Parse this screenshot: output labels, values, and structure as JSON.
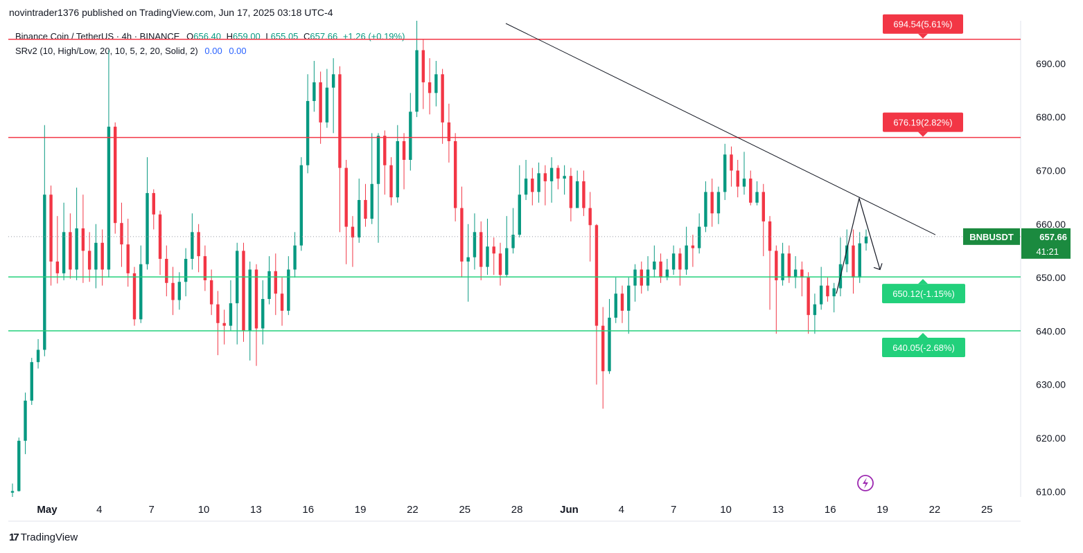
{
  "header": {
    "published": "novintrader1376 published on TradingView.com, Jun 17, 2025 03:18 UTC-4"
  },
  "legend": {
    "symbol": "Binance Coin / TetherUS · 4h · BINANCE",
    "open_label": "O",
    "open": "656.40",
    "high_label": "H",
    "high": "659.00",
    "low_label": "L",
    "low": "655.05",
    "close_label": "C",
    "close": "657.66",
    "change": "+1.26 (+0.19%)",
    "indicator": "SRv2 (10, High/Low, 20, 10, 5, 2, 20, Solid, 2)",
    "ind_val1": "0.00",
    "ind_val2": "0.00"
  },
  "footer": {
    "logo": "17",
    "brand": "TradingView"
  },
  "colors": {
    "up": "#089981",
    "down": "#f23645",
    "resistance": "#f23645",
    "support": "#22d07b",
    "accent": "#9c27b0"
  },
  "chart_data": {
    "type": "candlestick",
    "symbol": "BNBUSDT",
    "timeframe": "4h",
    "ylim": [
      609,
      698
    ],
    "yticks": [
      "690.00",
      "680.00",
      "670.00",
      "660.00",
      "650.00",
      "640.00",
      "630.00",
      "620.00",
      "610.00"
    ],
    "ytick_values": [
      690,
      680,
      670,
      660,
      650,
      640,
      630,
      620,
      610
    ],
    "xticks": [
      "May",
      "4",
      "7",
      "10",
      "13",
      "16",
      "19",
      "22",
      "25",
      "28",
      "Jun",
      "4",
      "7",
      "10",
      "13",
      "16",
      "19",
      "22",
      "25"
    ],
    "xtick_bold": [
      "May",
      "Jun"
    ],
    "last_price": {
      "symbol": "BNBUSDT",
      "value": "657.66",
      "countdown": "41:21",
      "price": 657.66
    },
    "levels": [
      {
        "price": 694.54,
        "label": "694.54(5.61%)",
        "kind": "resistance"
      },
      {
        "price": 676.19,
        "label": "676.19(2.82%)",
        "kind": "resistance"
      },
      {
        "price": 650.12,
        "label": "650.12(-1.15%)",
        "kind": "support"
      },
      {
        "price": 640.05,
        "label": "640.05(-2.68%)",
        "kind": "support"
      }
    ],
    "trendline": {
      "from": [
        "May 27",
        697.5
      ],
      "to": [
        "Jun 20",
        658.0
      ]
    },
    "projection": [
      [
        "Jun 15",
        647.0
      ],
      [
        "Jun 16",
        664.8
      ],
      [
        "Jun 17",
        651.5
      ]
    ],
    "candles": [
      [
        609.8,
        610.1,
        611.5,
        608.2
      ],
      [
        610.1,
        619.5,
        620.1,
        610.0
      ],
      [
        619.5,
        627.0,
        628.5,
        617.0
      ],
      [
        627.0,
        634.2,
        635.0,
        626.2
      ],
      [
        634.2,
        636.5,
        638.5,
        633.0
      ],
      [
        636.5,
        665.5,
        678.5,
        635.3
      ],
      [
        665.5,
        653.0,
        667.2,
        648.5
      ],
      [
        653.0,
        650.8,
        661.5,
        648.9
      ],
      [
        650.8,
        658.5,
        664.0,
        649.5
      ],
      [
        658.5,
        651.5,
        662.0,
        649.8
      ],
      [
        651.5,
        659.2,
        666.8,
        649.5
      ],
      [
        659.2,
        655.0,
        665.5,
        649.0
      ],
      [
        655.0,
        651.5,
        658.5,
        649.2
      ],
      [
        651.5,
        656.5,
        660.0,
        648.0
      ],
      [
        656.5,
        651.5,
        659.0,
        648.5
      ],
      [
        651.5,
        678.2,
        692.5,
        650.0
      ],
      [
        678.2,
        660.2,
        679.0,
        658.2
      ],
      [
        660.2,
        656.2,
        664.0,
        652.0
      ],
      [
        656.2,
        650.8,
        661.0,
        648.3
      ],
      [
        650.8,
        642.2,
        652.0,
        641.0
      ],
      [
        642.2,
        652.5,
        656.0,
        641.5
      ],
      [
        652.5,
        665.8,
        672.5,
        651.5
      ],
      [
        665.8,
        661.8,
        666.5,
        659.0
      ],
      [
        661.8,
        653.5,
        662.5,
        650.5
      ],
      [
        653.5,
        649.0,
        656.0,
        646.5
      ],
      [
        649.0,
        645.8,
        652.0,
        643.0
      ],
      [
        645.8,
        649.2,
        651.0,
        644.0
      ],
      [
        649.2,
        653.5,
        655.5,
        646.5
      ],
      [
        653.5,
        658.5,
        662.0,
        651.5
      ],
      [
        658.5,
        654.0,
        660.0,
        651.0
      ],
      [
        654.0,
        649.5,
        656.0,
        647.5
      ],
      [
        649.5,
        645.0,
        651.5,
        643.0
      ],
      [
        645.0,
        641.5,
        647.5,
        635.5
      ],
      [
        641.5,
        641.0,
        644.0,
        637.5
      ],
      [
        641.0,
        645.2,
        649.5,
        640.0
      ],
      [
        645.2,
        655.0,
        656.5,
        637.5
      ],
      [
        655.0,
        640.0,
        656.5,
        638.0
      ],
      [
        640.0,
        651.5,
        653.0,
        634.5
      ],
      [
        651.5,
        640.5,
        652.5,
        633.5
      ],
      [
        640.5,
        646.0,
        649.5,
        637.5
      ],
      [
        646.0,
        651.2,
        654.0,
        645.0
      ],
      [
        651.2,
        647.0,
        654.5,
        643.0
      ],
      [
        647.0,
        643.8,
        650.0,
        641.0
      ],
      [
        643.8,
        651.5,
        654.0,
        643.0
      ],
      [
        651.5,
        656.0,
        658.5,
        650.0
      ],
      [
        656.0,
        671.0,
        672.5,
        655.0
      ],
      [
        671.0,
        683.0,
        688.0,
        669.5
      ],
      [
        683.0,
        686.5,
        690.5,
        681.0
      ],
      [
        686.5,
        679.0,
        688.5,
        675.0
      ],
      [
        679.0,
        685.5,
        689.0,
        678.0
      ],
      [
        685.5,
        688.0,
        691.0,
        677.0
      ],
      [
        688.0,
        670.5,
        689.5,
        658.5
      ],
      [
        670.5,
        659.5,
        672.0,
        652.5
      ],
      [
        659.5,
        657.5,
        661.5,
        652.0
      ],
      [
        657.5,
        664.5,
        668.5,
        656.5
      ],
      [
        664.5,
        661.0,
        667.5,
        659.5
      ],
      [
        661.0,
        667.5,
        677.0,
        660.0
      ],
      [
        667.5,
        676.5,
        677.0,
        656.5
      ],
      [
        676.5,
        671.0,
        677.5,
        665.5
      ],
      [
        671.0,
        665.0,
        672.5,
        663.5
      ],
      [
        665.0,
        675.5,
        678.5,
        664.0
      ],
      [
        675.5,
        672.0,
        677.0,
        666.5
      ],
      [
        672.0,
        681.0,
        684.5,
        670.0
      ],
      [
        681.0,
        692.5,
        698.0,
        680.0
      ],
      [
        692.5,
        686.5,
        694.5,
        681.5
      ],
      [
        686.5,
        684.5,
        691.0,
        680.5
      ],
      [
        684.5,
        688.0,
        690.5,
        682.0
      ],
      [
        688.0,
        679.0,
        689.0,
        675.0
      ],
      [
        679.0,
        675.5,
        682.5,
        671.5
      ],
      [
        675.5,
        663.0,
        677.0,
        660.5
      ],
      [
        663.0,
        653.0,
        667.0,
        650.0
      ],
      [
        653.0,
        653.8,
        660.0,
        645.5
      ],
      [
        653.8,
        658.5,
        662.0,
        651.5
      ],
      [
        658.5,
        652.0,
        660.5,
        649.5
      ],
      [
        652.0,
        655.8,
        661.0,
        650.5
      ],
      [
        655.8,
        654.5,
        657.5,
        650.5
      ],
      [
        654.5,
        650.5,
        656.5,
        648.5
      ],
      [
        650.5,
        655.5,
        661.5,
        650.0
      ],
      [
        655.5,
        658.0,
        663.0,
        654.5
      ],
      [
        658.0,
        665.5,
        671.0,
        657.5
      ],
      [
        665.5,
        668.5,
        672.0,
        664.5
      ],
      [
        668.5,
        666.0,
        670.5,
        663.5
      ],
      [
        666.0,
        669.5,
        671.5,
        664.0
      ],
      [
        669.5,
        668.0,
        671.0,
        663.5
      ],
      [
        668.0,
        670.5,
        672.5,
        664.0
      ],
      [
        670.5,
        668.5,
        671.0,
        666.5
      ],
      [
        668.5,
        669.0,
        671.0,
        665.5
      ],
      [
        669.0,
        663.0,
        670.5,
        660.5
      ],
      [
        663.0,
        668.0,
        670.0,
        663.5
      ],
      [
        668.0,
        663.0,
        670.0,
        661.5
      ],
      [
        663.0,
        659.8,
        666.0,
        653.0
      ],
      [
        659.8,
        641.0,
        660.0,
        630.0
      ],
      [
        641.0,
        632.5,
        644.5,
        625.5
      ],
      [
        632.5,
        642.5,
        646.0,
        632.0
      ],
      [
        642.5,
        647.0,
        650.0,
        641.5
      ],
      [
        647.0,
        643.8,
        648.5,
        641.5
      ],
      [
        643.8,
        648.5,
        650.0,
        639.5
      ],
      [
        648.5,
        651.5,
        652.5,
        645.5
      ],
      [
        651.5,
        648.5,
        653.0,
        647.0
      ],
      [
        648.5,
        651.5,
        654.0,
        647.5
      ],
      [
        651.5,
        653.0,
        656.0,
        650.0
      ],
      [
        653.0,
        650.0,
        654.5,
        649.0
      ],
      [
        650.0,
        651.5,
        653.5,
        649.5
      ],
      [
        651.5,
        654.5,
        656.0,
        650.5
      ],
      [
        654.5,
        651.5,
        655.5,
        648.5
      ],
      [
        651.5,
        656.0,
        659.5,
        650.5
      ],
      [
        656.0,
        655.5,
        658.0,
        652.0
      ],
      [
        655.5,
        659.5,
        662.0,
        654.5
      ],
      [
        659.5,
        666.0,
        668.0,
        658.5
      ],
      [
        666.0,
        662.0,
        668.5,
        659.5
      ],
      [
        662.0,
        666.0,
        667.0,
        660.0
      ],
      [
        666.0,
        673.0,
        675.0,
        664.5
      ],
      [
        673.0,
        670.0,
        674.5,
        667.0
      ],
      [
        670.0,
        667.0,
        672.0,
        665.0
      ],
      [
        667.0,
        668.5,
        673.5,
        665.5
      ],
      [
        668.5,
        664.0,
        670.0,
        663.5
      ],
      [
        664.0,
        666.0,
        668.0,
        663.5
      ],
      [
        666.0,
        660.5,
        667.5,
        654.0
      ],
      [
        660.5,
        655.0,
        661.5,
        644.0
      ],
      [
        655.0,
        649.5,
        656.0,
        639.5
      ],
      [
        649.5,
        654.5,
        656.5,
        648.5
      ],
      [
        654.5,
        650.0,
        656.0,
        649.0
      ],
      [
        650.0,
        651.5,
        654.0,
        648.0
      ],
      [
        651.5,
        650.0,
        653.0,
        646.5
      ],
      [
        650.0,
        643.0,
        651.0,
        639.5
      ],
      [
        643.0,
        645.0,
        647.0,
        639.5
      ],
      [
        645.0,
        648.5,
        652.0,
        644.0
      ],
      [
        648.5,
        646.5,
        650.0,
        645.5
      ],
      [
        646.5,
        648.0,
        649.0,
        643.5
      ],
      [
        648.0,
        652.5,
        657.5,
        646.5
      ],
      [
        652.5,
        656.0,
        659.0,
        651.0
      ],
      [
        656.0,
        650.0,
        659.0,
        647.0
      ],
      [
        650.0,
        656.4,
        658.5,
        649.0
      ],
      [
        656.4,
        657.66,
        659.0,
        655.05
      ]
    ]
  }
}
